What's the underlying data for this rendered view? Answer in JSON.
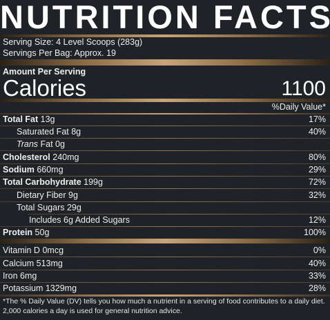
{
  "title": "NUTRITION FACTS",
  "serving": {
    "size": "Serving Size: 4 Level Scoops (283g)",
    "per_bag": "Servings Per Bag: Approx. 19"
  },
  "amount_label": "Amount Per Serving",
  "calories_label": "Calories",
  "calories_value": "1100",
  "dv_header": "%Daily Value*",
  "rows": [
    {
      "name": "Total Fat",
      "amount": "13g",
      "dv": "17%"
    },
    {
      "name": "Saturated Fat",
      "amount": "8g",
      "dv": "40%"
    },
    {
      "name": "Trans",
      "amount": "Fat 0g",
      "dv": ""
    },
    {
      "name": "Cholesterol",
      "amount": "240mg",
      "dv": "80%"
    },
    {
      "name": "Sodium",
      "amount": "660mg",
      "dv": "29%"
    },
    {
      "name": "Total Carbohydrate",
      "amount": "199g",
      "dv": "72%"
    },
    {
      "name": "Dietary Fiber",
      "amount": "9g",
      "dv": "32%"
    },
    {
      "name": "Total Sugars",
      "amount": "29g",
      "dv": ""
    },
    {
      "name": "Includes 6g Added Sugars",
      "amount": "",
      "dv": "12%"
    },
    {
      "name": "Protein",
      "amount": "50g",
      "dv": "100%"
    }
  ],
  "vitamins": [
    {
      "name": "Vitamin D",
      "amount": "0mcg",
      "dv": "0%"
    },
    {
      "name": "Calcium",
      "amount": "513mg",
      "dv": "40%"
    },
    {
      "name": "Iron",
      "amount": "6mg",
      "dv": "33%"
    },
    {
      "name": "Potassium",
      "amount": "1329mg",
      "dv": "28%"
    }
  ],
  "footnote": "*The % Daily Value (DV) tells you how much a nutrient in a serving of food contributes to a daily diet. 2,000 calories a day is used for general nutrition advice."
}
